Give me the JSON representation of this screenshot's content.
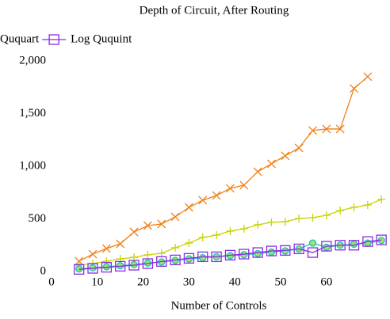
{
  "chart_data": {
    "type": "line",
    "title": "Depth of Circuit, After Routing",
    "x_label": "Number of Controls",
    "x": [
      6,
      9,
      12,
      15,
      18,
      21,
      24,
      27,
      30,
      33,
      36,
      39,
      42,
      45,
      48,
      51,
      54,
      57,
      60,
      63,
      66,
      69,
      72
    ],
    "series": [
      {
        "color": "#f07f1a",
        "marker": "x",
        "values": [
          98,
          165,
          218,
          263,
          376,
          436,
          451,
          519,
          609,
          677,
          722,
          790,
          820,
          948,
          1023,
          1099,
          1174,
          1339,
          1354,
          1354,
          1738,
          1851,
          null
        ]
      },
      {
        "color": "#c8d400",
        "marker": "+",
        "values": [
          60,
          75,
          98,
          120,
          135,
          158,
          173,
          226,
          271,
          324,
          346,
          384,
          406,
          444,
          467,
          474,
          504,
          512,
          534,
          579,
          609,
          632,
          685
        ]
      },
      {
        "name": "Ququart",
        "color": "#1fbfbf",
        "marker": "o",
        "values": [
          25,
          35,
          45,
          55,
          65,
          80,
          90,
          105,
          120,
          130,
          140,
          150,
          160,
          170,
          185,
          195,
          215,
          270,
          230,
          250,
          260,
          270,
          295
        ]
      },
      {
        "name": "Log Ququint",
        "color": "#8a2be2",
        "marker": "square",
        "values": [
          20,
          30,
          40,
          50,
          60,
          75,
          95,
          110,
          125,
          140,
          140,
          155,
          165,
          180,
          195,
          200,
          215,
          180,
          240,
          250,
          250,
          285,
          300
        ]
      }
    ],
    "xlim": [
      0,
      73
    ],
    "xticks": [
      0,
      10,
      20,
      30,
      40,
      50,
      60
    ],
    "ylim": [
      0,
      2000
    ],
    "yticks": [
      0,
      500,
      {
        "value": 1000,
        "label": "1,000"
      },
      {
        "value": 1500,
        "label": "1,500"
      },
      {
        "value": 2000,
        "label": "2,000"
      }
    ]
  }
}
